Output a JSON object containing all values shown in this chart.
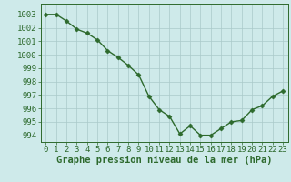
{
  "x": [
    0,
    1,
    2,
    3,
    4,
    5,
    6,
    7,
    8,
    9,
    10,
    11,
    12,
    13,
    14,
    15,
    16,
    17,
    18,
    19,
    20,
    21,
    22,
    23
  ],
  "y": [
    1003.0,
    1003.0,
    1002.5,
    1001.9,
    1001.6,
    1001.1,
    1000.3,
    999.8,
    999.2,
    998.5,
    996.9,
    995.9,
    995.4,
    994.1,
    994.7,
    994.0,
    994.0,
    994.5,
    995.0,
    995.1,
    995.9,
    996.2,
    996.9,
    997.3
  ],
  "line_color": "#2d6a2d",
  "marker": "D",
  "marker_size": 2.5,
  "bg_color": "#ceeaea",
  "grid_color": "#aacaca",
  "xlabel": "Graphe pression niveau de la mer (hPa)",
  "ylim": [
    993.5,
    1003.8
  ],
  "yticks": [
    994,
    995,
    996,
    997,
    998,
    999,
    1000,
    1001,
    1002,
    1003
  ],
  "xticks": [
    0,
    1,
    2,
    3,
    4,
    5,
    6,
    7,
    8,
    9,
    10,
    11,
    12,
    13,
    14,
    15,
    16,
    17,
    18,
    19,
    20,
    21,
    22,
    23
  ],
  "xlabel_fontsize": 7.5,
  "tick_fontsize": 6.5,
  "tick_color": "#2d6a2d",
  "axis_color": "#2d6a2d",
  "linewidth": 1.0
}
